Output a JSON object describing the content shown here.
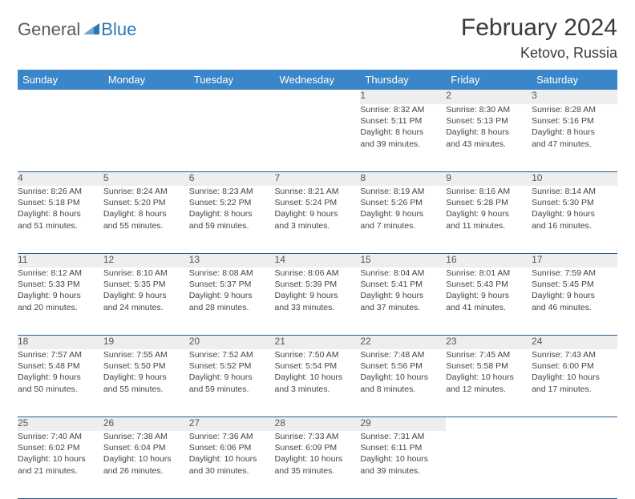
{
  "logo": {
    "text1": "General",
    "text2": "Blue"
  },
  "header": {
    "month": "February 2024",
    "location": "Ketovo, Russia"
  },
  "colors": {
    "header_bg": "#3a86c8",
    "header_text": "#ffffff",
    "daynum_bg": "#eeeeee",
    "row_divider": "#2a5a8a",
    "logo_gray": "#595959",
    "logo_blue": "#2a76b5"
  },
  "weekdays": [
    "Sunday",
    "Monday",
    "Tuesday",
    "Wednesday",
    "Thursday",
    "Friday",
    "Saturday"
  ],
  "weeks": [
    {
      "days": [
        null,
        null,
        null,
        null,
        {
          "n": "1",
          "sr": "Sunrise: 8:32 AM",
          "ss": "Sunset: 5:11 PM",
          "d1": "Daylight: 8 hours",
          "d2": "and 39 minutes."
        },
        {
          "n": "2",
          "sr": "Sunrise: 8:30 AM",
          "ss": "Sunset: 5:13 PM",
          "d1": "Daylight: 8 hours",
          "d2": "and 43 minutes."
        },
        {
          "n": "3",
          "sr": "Sunrise: 8:28 AM",
          "ss": "Sunset: 5:16 PM",
          "d1": "Daylight: 8 hours",
          "d2": "and 47 minutes."
        }
      ]
    },
    {
      "days": [
        {
          "n": "4",
          "sr": "Sunrise: 8:26 AM",
          "ss": "Sunset: 5:18 PM",
          "d1": "Daylight: 8 hours",
          "d2": "and 51 minutes."
        },
        {
          "n": "5",
          "sr": "Sunrise: 8:24 AM",
          "ss": "Sunset: 5:20 PM",
          "d1": "Daylight: 8 hours",
          "d2": "and 55 minutes."
        },
        {
          "n": "6",
          "sr": "Sunrise: 8:23 AM",
          "ss": "Sunset: 5:22 PM",
          "d1": "Daylight: 8 hours",
          "d2": "and 59 minutes."
        },
        {
          "n": "7",
          "sr": "Sunrise: 8:21 AM",
          "ss": "Sunset: 5:24 PM",
          "d1": "Daylight: 9 hours",
          "d2": "and 3 minutes."
        },
        {
          "n": "8",
          "sr": "Sunrise: 8:19 AM",
          "ss": "Sunset: 5:26 PM",
          "d1": "Daylight: 9 hours",
          "d2": "and 7 minutes."
        },
        {
          "n": "9",
          "sr": "Sunrise: 8:16 AM",
          "ss": "Sunset: 5:28 PM",
          "d1": "Daylight: 9 hours",
          "d2": "and 11 minutes."
        },
        {
          "n": "10",
          "sr": "Sunrise: 8:14 AM",
          "ss": "Sunset: 5:30 PM",
          "d1": "Daylight: 9 hours",
          "d2": "and 16 minutes."
        }
      ]
    },
    {
      "days": [
        {
          "n": "11",
          "sr": "Sunrise: 8:12 AM",
          "ss": "Sunset: 5:33 PM",
          "d1": "Daylight: 9 hours",
          "d2": "and 20 minutes."
        },
        {
          "n": "12",
          "sr": "Sunrise: 8:10 AM",
          "ss": "Sunset: 5:35 PM",
          "d1": "Daylight: 9 hours",
          "d2": "and 24 minutes."
        },
        {
          "n": "13",
          "sr": "Sunrise: 8:08 AM",
          "ss": "Sunset: 5:37 PM",
          "d1": "Daylight: 9 hours",
          "d2": "and 28 minutes."
        },
        {
          "n": "14",
          "sr": "Sunrise: 8:06 AM",
          "ss": "Sunset: 5:39 PM",
          "d1": "Daylight: 9 hours",
          "d2": "and 33 minutes."
        },
        {
          "n": "15",
          "sr": "Sunrise: 8:04 AM",
          "ss": "Sunset: 5:41 PM",
          "d1": "Daylight: 9 hours",
          "d2": "and 37 minutes."
        },
        {
          "n": "16",
          "sr": "Sunrise: 8:01 AM",
          "ss": "Sunset: 5:43 PM",
          "d1": "Daylight: 9 hours",
          "d2": "and 41 minutes."
        },
        {
          "n": "17",
          "sr": "Sunrise: 7:59 AM",
          "ss": "Sunset: 5:45 PM",
          "d1": "Daylight: 9 hours",
          "d2": "and 46 minutes."
        }
      ]
    },
    {
      "days": [
        {
          "n": "18",
          "sr": "Sunrise: 7:57 AM",
          "ss": "Sunset: 5:48 PM",
          "d1": "Daylight: 9 hours",
          "d2": "and 50 minutes."
        },
        {
          "n": "19",
          "sr": "Sunrise: 7:55 AM",
          "ss": "Sunset: 5:50 PM",
          "d1": "Daylight: 9 hours",
          "d2": "and 55 minutes."
        },
        {
          "n": "20",
          "sr": "Sunrise: 7:52 AM",
          "ss": "Sunset: 5:52 PM",
          "d1": "Daylight: 9 hours",
          "d2": "and 59 minutes."
        },
        {
          "n": "21",
          "sr": "Sunrise: 7:50 AM",
          "ss": "Sunset: 5:54 PM",
          "d1": "Daylight: 10 hours",
          "d2": "and 3 minutes."
        },
        {
          "n": "22",
          "sr": "Sunrise: 7:48 AM",
          "ss": "Sunset: 5:56 PM",
          "d1": "Daylight: 10 hours",
          "d2": "and 8 minutes."
        },
        {
          "n": "23",
          "sr": "Sunrise: 7:45 AM",
          "ss": "Sunset: 5:58 PM",
          "d1": "Daylight: 10 hours",
          "d2": "and 12 minutes."
        },
        {
          "n": "24",
          "sr": "Sunrise: 7:43 AM",
          "ss": "Sunset: 6:00 PM",
          "d1": "Daylight: 10 hours",
          "d2": "and 17 minutes."
        }
      ]
    },
    {
      "days": [
        {
          "n": "25",
          "sr": "Sunrise: 7:40 AM",
          "ss": "Sunset: 6:02 PM",
          "d1": "Daylight: 10 hours",
          "d2": "and 21 minutes."
        },
        {
          "n": "26",
          "sr": "Sunrise: 7:38 AM",
          "ss": "Sunset: 6:04 PM",
          "d1": "Daylight: 10 hours",
          "d2": "and 26 minutes."
        },
        {
          "n": "27",
          "sr": "Sunrise: 7:36 AM",
          "ss": "Sunset: 6:06 PM",
          "d1": "Daylight: 10 hours",
          "d2": "and 30 minutes."
        },
        {
          "n": "28",
          "sr": "Sunrise: 7:33 AM",
          "ss": "Sunset: 6:09 PM",
          "d1": "Daylight: 10 hours",
          "d2": "and 35 minutes."
        },
        {
          "n": "29",
          "sr": "Sunrise: 7:31 AM",
          "ss": "Sunset: 6:11 PM",
          "d1": "Daylight: 10 hours",
          "d2": "and 39 minutes."
        },
        null,
        null
      ]
    }
  ]
}
